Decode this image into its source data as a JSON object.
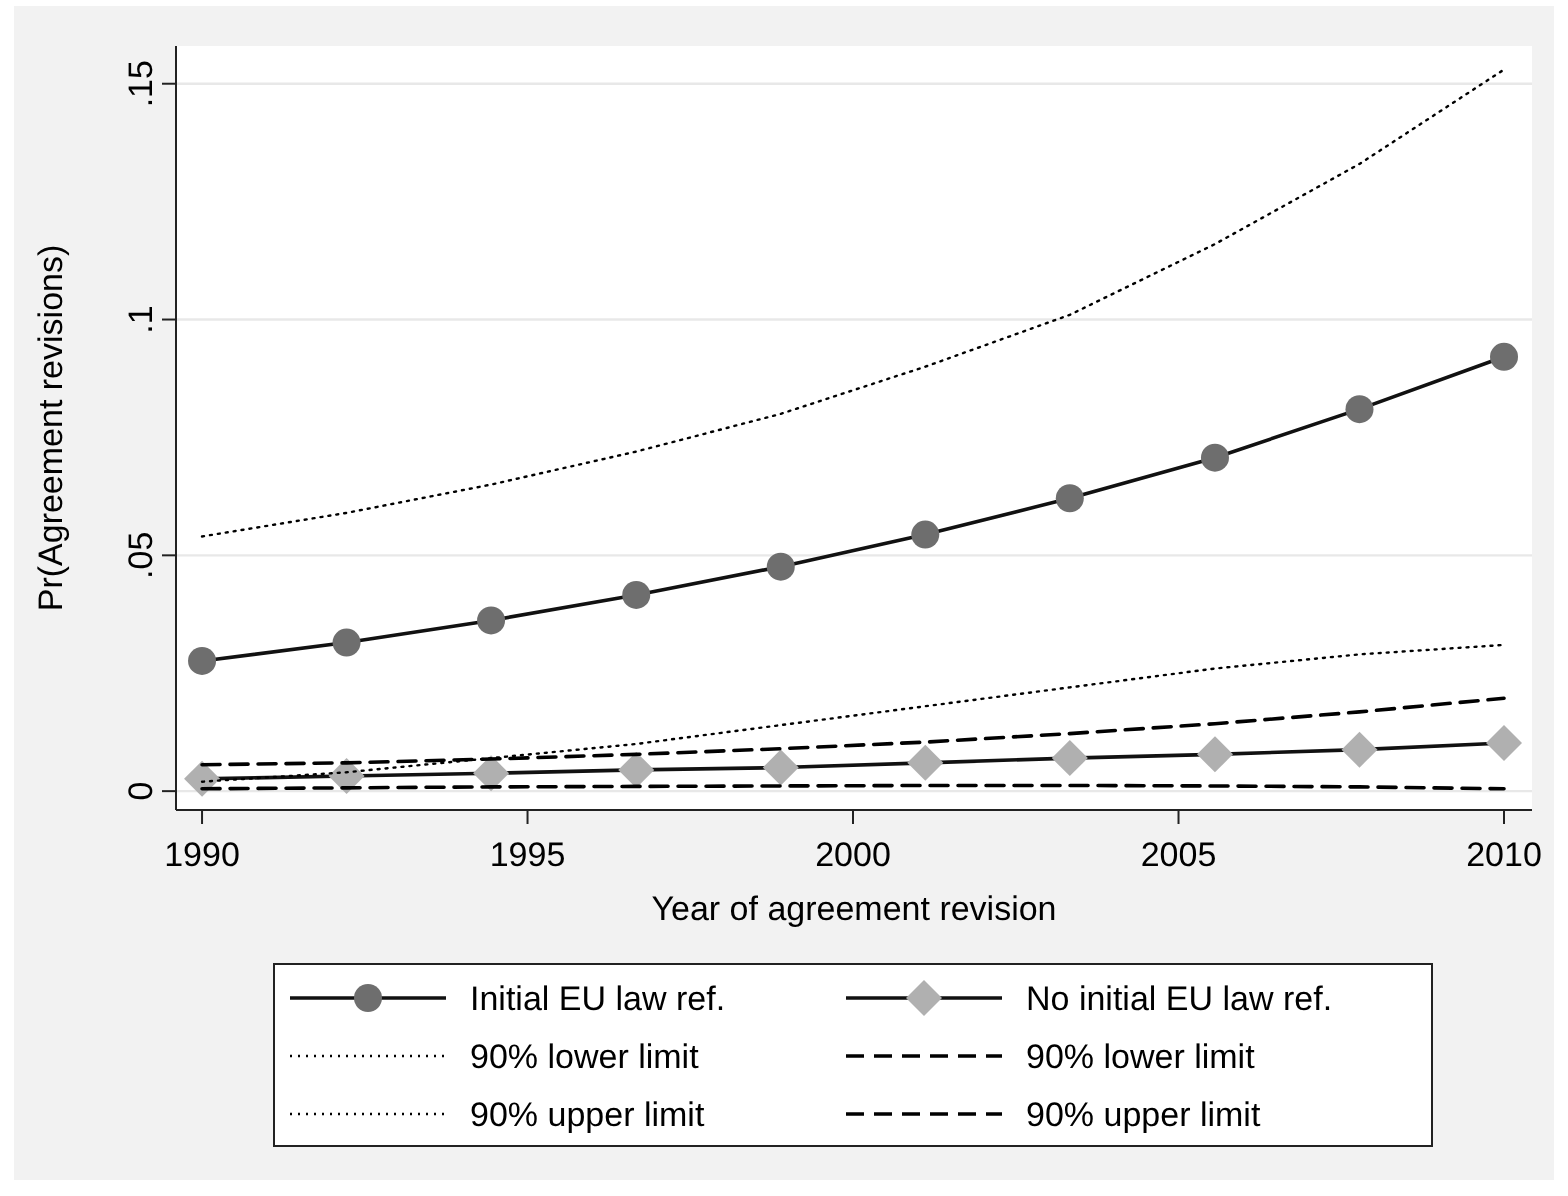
{
  "chart_data": {
    "type": "line",
    "xlabel": "Year of agreement revision",
    "ylabel": "Pr(Agreement revisions)",
    "x": [
      1990,
      1992.22,
      1994.44,
      1996.67,
      1998.89,
      2001.11,
      2003.33,
      2005.56,
      2007.78,
      2010
    ],
    "xlim": [
      1989.6,
      2010.43
    ],
    "xticks": [
      1990,
      1995,
      2000,
      2005,
      2010
    ],
    "ylim": [
      -0.004,
      0.158
    ],
    "yticks": [
      {
        "value": 0,
        "label": "0"
      },
      {
        "value": 0.05,
        "label": ".05"
      },
      {
        "value": 0.1,
        "label": ".1"
      },
      {
        "value": 0.15,
        "label": ".15"
      }
    ],
    "grid": "y",
    "legend": "bottom",
    "series": [
      {
        "name": "Initial EU law ref.",
        "color": "#6e6e6e",
        "marker": "circle",
        "line_style": "solid",
        "values": [
          0.0276,
          0.0315,
          0.0362,
          0.0416,
          0.0476,
          0.0544,
          0.0621,
          0.0707,
          0.081,
          0.0921
        ]
      },
      {
        "name": "No initial EU law ref.",
        "color": "#b0b0b0",
        "marker": "diamond",
        "line_style": "solid",
        "values": [
          0.0026,
          0.0032,
          0.0038,
          0.0045,
          0.005,
          0.006,
          0.007,
          0.0078,
          0.0088,
          0.0102
        ]
      },
      {
        "name": "90% lower limit",
        "color": "#000000",
        "marker": "none",
        "line_style": "dotted",
        "values": [
          0.002,
          0.004,
          0.007,
          0.01,
          0.014,
          0.018,
          0.022,
          0.026,
          0.029,
          0.031
        ]
      },
      {
        "name": "90% lower limit",
        "color": "#000000",
        "marker": "none",
        "line_style": "dashed",
        "values": [
          0.0005,
          0.0007,
          0.0009,
          0.001,
          0.0011,
          0.0012,
          0.0012,
          0.0011,
          0.0009,
          0.0005
        ]
      },
      {
        "name": "90% upper limit",
        "color": "#000000",
        "marker": "none",
        "line_style": "dotted",
        "values": [
          0.054,
          0.059,
          0.065,
          0.072,
          0.08,
          0.09,
          0.101,
          0.116,
          0.133,
          0.153
        ]
      },
      {
        "name": "90% upper limit",
        "color": "#000000",
        "marker": "none",
        "line_style": "dashed",
        "values": [
          0.0056,
          0.006,
          0.0068,
          0.0078,
          0.009,
          0.0104,
          0.0122,
          0.0143,
          0.0168,
          0.0197
        ]
      }
    ]
  }
}
